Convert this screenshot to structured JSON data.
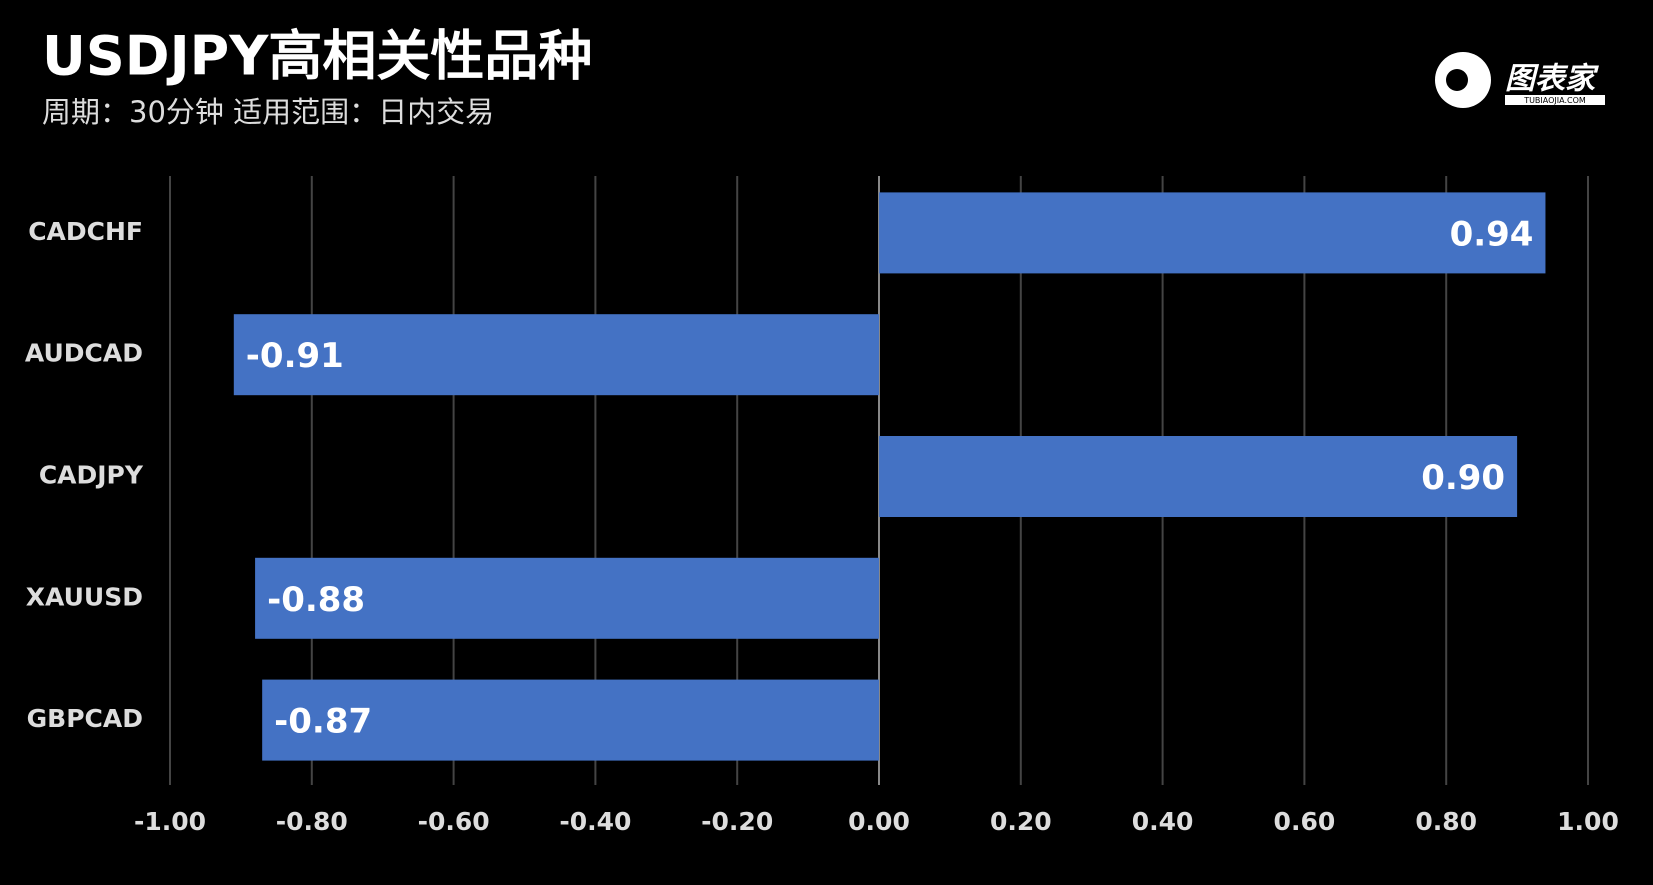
{
  "chart_data": {
    "type": "barh",
    "title": "USDJPY高相关性品种",
    "subtitle": "周期：30分钟  适用范围：日内交易",
    "categories": [
      "CADCHF",
      "AUDCAD",
      "CADJPY",
      "XAUUSD",
      "GBPCAD"
    ],
    "values": [
      0.94,
      -0.91,
      0.9,
      -0.88,
      -0.87
    ],
    "value_labels": [
      "0.94",
      "-0.91",
      "0.90",
      "-0.88",
      "-0.87"
    ],
    "color": "#4472c4",
    "xlim": [
      -1,
      1
    ],
    "xticks": [
      {
        "value": -1,
        "label": "-1.00"
      },
      {
        "value": -0.8,
        "label": "-0.80"
      },
      {
        "value": -0.6,
        "label": "-0.60"
      },
      {
        "value": -0.4,
        "label": "-0.40"
      },
      {
        "value": -0.2,
        "label": "-0.20"
      },
      {
        "value": 0,
        "label": "0.00"
      },
      {
        "value": 0.2,
        "label": "0.20"
      },
      {
        "value": 0.4,
        "label": "0.40"
      },
      {
        "value": 0.6,
        "label": "0.60"
      },
      {
        "value": 0.8,
        "label": "0.80"
      },
      {
        "value": 1,
        "label": "1.00"
      }
    ],
    "grid": true
  },
  "logo": {
    "name": "图表家",
    "site": "TUBIAOJIA.COM"
  }
}
